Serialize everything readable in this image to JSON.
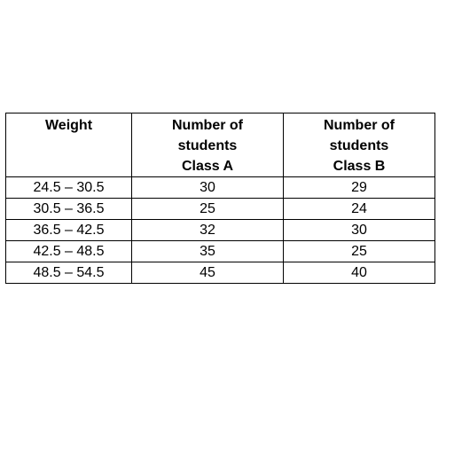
{
  "table": {
    "headers": [
      [
        "Weight"
      ],
      [
        "Number of",
        "students",
        "Class A"
      ],
      [
        "Number of",
        "students",
        "Class B"
      ]
    ],
    "rows": [
      [
        "24.5 – 30.5",
        "30",
        "29"
      ],
      [
        "30.5 – 36.5",
        "25",
        "24"
      ],
      [
        "36.5 – 42.5",
        "32",
        "30"
      ],
      [
        "42.5 – 48.5",
        "35",
        "25"
      ],
      [
        "48.5 – 54.5",
        "45",
        "40"
      ]
    ]
  }
}
